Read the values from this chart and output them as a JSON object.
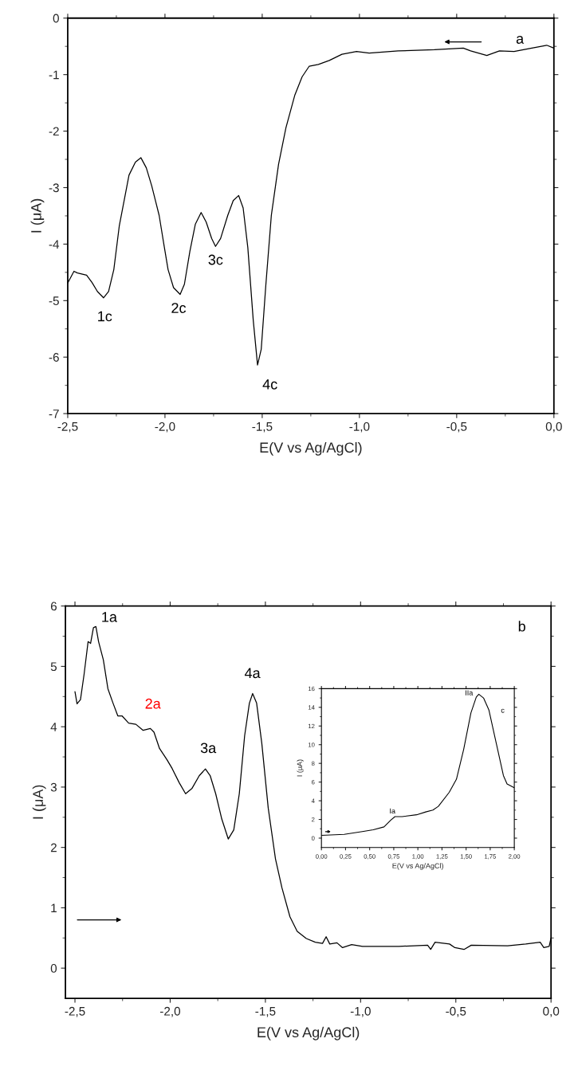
{
  "chart_data": [
    {
      "type": "line",
      "xlabel": "E(V vs Ag/AgCl)",
      "ylabel": "I (μA)",
      "xlim": [
        -2.5,
        0
      ],
      "ylim": [
        -7,
        0
      ],
      "xticks": [
        {
          "value": -2.5,
          "label": "-2,5"
        },
        {
          "value": -2.0,
          "label": "-2,0"
        },
        {
          "value": -1.5,
          "label": "-1,5"
        },
        {
          "value": -1.0,
          "label": "-1,0"
        },
        {
          "value": -0.5,
          "label": "-0,5"
        },
        {
          "value": 0.0,
          "label": "0,0"
        }
      ],
      "yticks": [
        -7,
        -6,
        -5,
        -4,
        -3,
        -2,
        -1,
        0
      ],
      "grid": false,
      "marker": "none",
      "line_style": "solid",
      "annotations": [
        "1c",
        "2c",
        "3c",
        "4c",
        "a"
      ],
      "series": [
        {
          "color": "#000000",
          "x": [
            -2.5,
            -2.468,
            -2.45,
            -2.403,
            -2.375,
            -2.347,
            -2.316,
            -2.29,
            -2.263,
            -2.235,
            -2.21,
            -2.185,
            -2.152,
            -2.124,
            -2.096,
            -2.068,
            -2.03,
            -2.003,
            -1.984,
            -1.956,
            -1.922,
            -1.9,
            -1.872,
            -1.844,
            -1.814,
            -1.788,
            -1.76,
            -1.74,
            -1.714,
            -1.677,
            -1.649,
            -1.621,
            -1.598,
            -1.574,
            -1.546,
            -1.524,
            -1.505,
            -1.481,
            -1.453,
            -1.416,
            -1.378,
            -1.332,
            -1.295,
            -1.258,
            -1.211,
            -1.155,
            -1.09,
            -1.015,
            -0.95,
            -0.801,
            -0.615,
            -0.466,
            -0.428,
            -0.345,
            -0.28,
            -0.205,
            -0.13,
            -0.037,
            0.0
          ],
          "values": [
            -4.69,
            -4.48,
            -4.51,
            -4.55,
            -4.68,
            -4.84,
            -4.95,
            -4.84,
            -4.45,
            -3.68,
            -3.23,
            -2.78,
            -2.55,
            -2.47,
            -2.65,
            -2.97,
            -3.49,
            -4.06,
            -4.45,
            -4.77,
            -4.89,
            -4.71,
            -4.13,
            -3.65,
            -3.44,
            -3.61,
            -3.9,
            -4.04,
            -3.9,
            -3.49,
            -3.23,
            -3.14,
            -3.36,
            -4.06,
            -5.35,
            -6.14,
            -5.86,
            -4.71,
            -3.49,
            -2.59,
            -1.94,
            -1.36,
            -1.04,
            -0.85,
            -0.82,
            -0.75,
            -0.64,
            -0.59,
            -0.62,
            -0.58,
            -0.56,
            -0.53,
            -0.58,
            -0.66,
            -0.58,
            -0.59,
            -0.54,
            -0.48,
            -0.53
          ]
        }
      ]
    },
    {
      "type": "line",
      "xlabel": "E(V vs Ag/AgCl)",
      "ylabel": "I (μA)",
      "xlim": [
        -2.55,
        0
      ],
      "ylim": [
        -0.5,
        6
      ],
      "xticks": [
        {
          "value": -2.5,
          "label": "-2,5"
        },
        {
          "value": -2.0,
          "label": "-2,0"
        },
        {
          "value": -1.5,
          "label": "-1,5"
        },
        {
          "value": -1.0,
          "label": "-1,0"
        },
        {
          "value": -0.5,
          "label": "-0,5"
        },
        {
          "value": 0.0,
          "label": "0,0"
        }
      ],
      "yticks": [
        0,
        1,
        2,
        3,
        4,
        5,
        6
      ],
      "grid": false,
      "marker": "none",
      "line_style": "solid",
      "annotations": [
        "1a",
        "2a",
        "3a",
        "4a",
        "b"
      ],
      "series": [
        {
          "color": "#000000",
          "x": [
            -2.5,
            -2.489,
            -2.471,
            -2.452,
            -2.431,
            -2.418,
            -2.403,
            -2.39,
            -2.376,
            -2.351,
            -2.327,
            -2.3,
            -2.275,
            -2.253,
            -2.218,
            -2.18,
            -2.142,
            -2.104,
            -2.085,
            -2.056,
            -2.018,
            -1.99,
            -1.952,
            -1.919,
            -1.885,
            -1.847,
            -1.815,
            -1.79,
            -1.761,
            -1.729,
            -1.695,
            -1.666,
            -1.637,
            -1.609,
            -1.584,
            -1.567,
            -1.546,
            -1.519,
            -1.485,
            -1.447,
            -1.413,
            -1.371,
            -1.333,
            -1.285,
            -1.238,
            -1.2,
            -1.181,
            -1.162,
            -1.124,
            -1.095,
            -1.047,
            -0.99,
            -0.8,
            -0.648,
            -0.632,
            -0.609,
            -0.533,
            -0.505,
            -0.457,
            -0.419,
            -0.228,
            -0.133,
            -0.057,
            -0.038,
            -0.01,
            0.0
          ],
          "values": [
            4.58,
            4.38,
            4.45,
            4.87,
            5.41,
            5.38,
            5.64,
            5.66,
            5.41,
            5.11,
            4.63,
            4.39,
            4.18,
            4.18,
            4.06,
            4.04,
            3.94,
            3.97,
            3.91,
            3.64,
            3.46,
            3.31,
            3.07,
            2.89,
            2.98,
            3.19,
            3.3,
            3.19,
            2.89,
            2.47,
            2.14,
            2.29,
            2.89,
            3.85,
            4.39,
            4.55,
            4.39,
            3.73,
            2.65,
            1.81,
            1.33,
            0.85,
            0.61,
            0.49,
            0.43,
            0.41,
            0.52,
            0.4,
            0.42,
            0.34,
            0.39,
            0.36,
            0.36,
            0.38,
            0.31,
            0.43,
            0.4,
            0.34,
            0.31,
            0.38,
            0.37,
            0.4,
            0.43,
            0.34,
            0.36,
            0.5
          ]
        }
      ]
    },
    {
      "type": "line",
      "xlabel": "E(V vs Ag/AgCl)",
      "ylabel": "I (μA)",
      "xlim": [
        0,
        2
      ],
      "ylim": [
        -1,
        16
      ],
      "xticks": [
        {
          "value": 0,
          "label": "0,00"
        },
        {
          "value": 0.25,
          "label": "0,25"
        },
        {
          "value": 0.5,
          "label": "0,50"
        },
        {
          "value": 0.75,
          "label": "0,75"
        },
        {
          "value": 1.0,
          "label": "1,00"
        },
        {
          "value": 1.25,
          "label": "1,25"
        },
        {
          "value": 1.5,
          "label": "1,50"
        },
        {
          "value": 1.75,
          "label": "1,75"
        },
        {
          "value": 2.0,
          "label": "2,00"
        }
      ],
      "yticks": [
        0,
        2,
        4,
        6,
        8,
        10,
        12,
        14,
        16
      ],
      "grid": false,
      "marker": "none",
      "line_style": "solid",
      "annotations": [
        "Ia",
        "IIa",
        "c"
      ],
      "series": [
        {
          "color": "#000000",
          "x": [
            0,
            0.236,
            0.424,
            0.537,
            0.649,
            0.717,
            0.762,
            0.837,
            0.987,
            1.081,
            1.156,
            1.212,
            1.325,
            1.4,
            1.475,
            1.55,
            1.606,
            1.632,
            1.681,
            1.737,
            1.812,
            1.887,
            1.925,
            2.0
          ],
          "values": [
            0.3,
            0.4,
            0.7,
            0.9,
            1.2,
            1.9,
            2.3,
            2.3,
            2.5,
            2.8,
            3.0,
            3.4,
            4.9,
            6.3,
            9.5,
            13.4,
            15.1,
            15.4,
            15.0,
            13.7,
            10.2,
            6.7,
            5.8,
            5.4
          ]
        }
      ]
    }
  ]
}
